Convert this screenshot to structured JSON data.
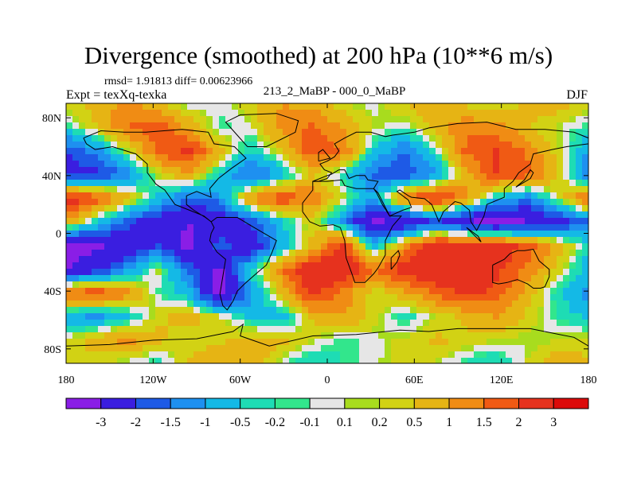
{
  "chart_data": {
    "type": "heatmap",
    "title": "Divergence (smoothed) at 200 hPa (10**6 m/s)",
    "stats_text": "rmsd= 1.91813  diff= 0.00623966",
    "experiment": "Expt = texXq-texka",
    "comparison": "213_2_MaBP - 000_0_MaBP",
    "season": "DJF",
    "xlim": [
      -180,
      180
    ],
    "ylim": [
      -90,
      90
    ],
    "x_ticks": [
      {
        "value": -180,
        "label": "180"
      },
      {
        "value": -120,
        "label": "120W"
      },
      {
        "value": -60,
        "label": "60W"
      },
      {
        "value": 0,
        "label": "0"
      },
      {
        "value": 60,
        "label": "60E"
      },
      {
        "value": 120,
        "label": "120E"
      },
      {
        "value": 180,
        "label": "180"
      }
    ],
    "y_ticks": [
      {
        "value": 80,
        "label": "80N"
      },
      {
        "value": 40,
        "label": "40N"
      },
      {
        "value": 0,
        "label": "0"
      },
      {
        "value": -40,
        "label": "40S"
      },
      {
        "value": -80,
        "label": "80S"
      }
    ],
    "levels": [
      "-3",
      "-2",
      "-1.5",
      "-1",
      "-0.5",
      "-0.2",
      "-0.1",
      "0.1",
      "0.2",
      "0.5",
      "1",
      "1.5",
      "2",
      "3"
    ],
    "colors": [
      "#8a1ee6",
      "#3a1ee0",
      "#1e5ae6",
      "#1e90f0",
      "#14b9e6",
      "#1edcb4",
      "#32e68c",
      "#e6e6e6",
      "#a8dc1e",
      "#d2d214",
      "#e6b414",
      "#f08c14",
      "#f05a14",
      "#e6321e",
      "#dc0a0a"
    ],
    "contour_sample_values": [
      [
        0.3,
        0.7,
        1.2,
        0.6,
        -0.1,
        0.0,
        0.4,
        1.0,
        0.8,
        0.2,
        0.0,
        0.5,
        0.9,
        0.4,
        0.1,
        0.6,
        0.8,
        0.3
      ],
      [
        -0.3,
        0.5,
        1.5,
        1.8,
        0.9,
        -0.2,
        0.1,
        1.2,
        1.6,
        1.0,
        0.2,
        -0.1,
        0.7,
        1.4,
        1.2,
        0.6,
        0.1,
        -0.2
      ],
      [
        -2.0,
        -1.2,
        0.2,
        1.7,
        2.2,
        0.8,
        -0.6,
        0.4,
        1.9,
        1.5,
        -0.5,
        -1.5,
        -0.2,
        1.6,
        2.1,
        1.4,
        0.3,
        -1.0
      ],
      [
        -2.4,
        -2.2,
        -1.4,
        0.2,
        1.0,
        -0.6,
        -1.8,
        -0.8,
        0.5,
        -0.3,
        -1.6,
        -2.0,
        -1.2,
        0.8,
        2.0,
        1.8,
        0.6,
        -1.6
      ],
      [
        2.6,
        1.8,
        0.8,
        -0.6,
        -1.6,
        -1.2,
        1.2,
        2.0,
        1.4,
        0.2,
        -1.0,
        1.6,
        2.4,
        1.2,
        -0.6,
        -1.4,
        0.2,
        1.8
      ],
      [
        1.0,
        -0.4,
        -1.8,
        -2.6,
        -3.0,
        -2.8,
        -1.8,
        -0.6,
        0.4,
        -1.2,
        -3.2,
        -3.0,
        -2.0,
        -3.0,
        -3.4,
        -3.0,
        -2.4,
        -1.6
      ],
      [
        -3.4,
        -3.2,
        -2.6,
        -2.0,
        -3.4,
        -1.6,
        -2.8,
        -0.8,
        0.6,
        2.2,
        -0.8,
        1.0,
        2.6,
        2.8,
        2.6,
        1.8,
        0.8,
        -0.4
      ],
      [
        -3.0,
        -2.4,
        -1.2,
        0.2,
        -1.6,
        -3.2,
        -0.4,
        1.4,
        2.6,
        2.8,
        1.6,
        2.4,
        2.8,
        2.6,
        2.2,
        1.4,
        0.4,
        -0.8
      ],
      [
        1.6,
        2.0,
        1.2,
        -0.2,
        -0.8,
        -3.4,
        -1.2,
        0.6,
        2.2,
        1.4,
        0.2,
        0.8,
        1.6,
        2.2,
        1.8,
        0.8,
        -0.4,
        -1.2
      ],
      [
        -0.8,
        -1.2,
        -0.6,
        0.4,
        0.8,
        0.2,
        -0.6,
        -0.8,
        0.6,
        1.0,
        0.4,
        -0.4,
        0.2,
        0.6,
        1.0,
        0.4,
        -0.2,
        -0.6
      ],
      [
        0.2,
        0.8,
        1.2,
        0.6,
        0.2,
        0.4,
        0.8,
        0.6,
        0.2,
        -0.2,
        0.0,
        0.3,
        0.6,
        0.4,
        0.2,
        0.1,
        0.2,
        0.3
      ],
      [
        0.4,
        0.2,
        0.0,
        -0.4,
        0.6,
        1.0,
        0.8,
        0.0,
        -0.6,
        -0.2,
        0.0,
        0.4,
        0.2,
        -0.3,
        -0.6,
        0.2,
        0.8,
        0.6
      ]
    ]
  }
}
